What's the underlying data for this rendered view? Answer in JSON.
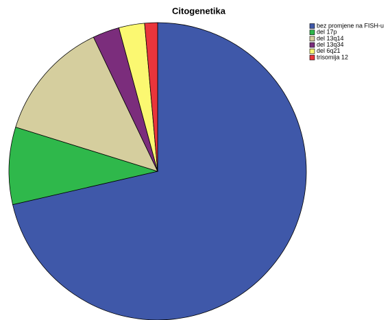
{
  "chart_data": {
    "type": "pie",
    "title": "Citogenetika",
    "categories": [
      "bez promjene na FISH-u",
      "del 17p",
      "del 13q14",
      "del 13q34",
      "del 6q21",
      "trisomija 12"
    ],
    "values": [
      71.4,
      8.4,
      13.1,
      2.9,
      2.8,
      1.4
    ],
    "colors": [
      "#3f58a9",
      "#2fb84b",
      "#d5ce9e",
      "#7b2d7c",
      "#fbf871",
      "#e9353b"
    ],
    "legend": "top-right"
  }
}
